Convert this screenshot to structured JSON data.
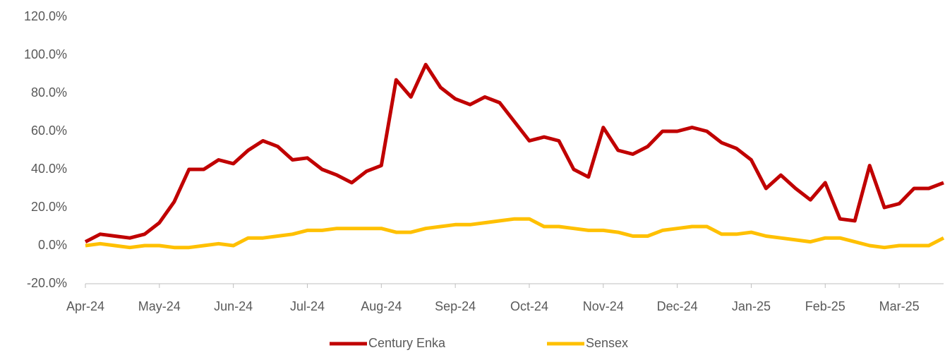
{
  "chart_data": {
    "type": "line",
    "categories": [
      "Apr-24",
      null,
      null,
      null,
      null,
      "May-24",
      null,
      null,
      null,
      null,
      "Jun-24",
      null,
      null,
      null,
      null,
      "Jul-24",
      null,
      null,
      null,
      null,
      "Aug-24",
      null,
      null,
      null,
      null,
      "Sep-24",
      null,
      null,
      null,
      null,
      "Oct-24",
      null,
      null,
      null,
      null,
      "Nov-24",
      null,
      null,
      null,
      null,
      "Dec-24",
      null,
      null,
      null,
      null,
      "Jan-25",
      null,
      null,
      null,
      null,
      "Feb-25",
      null,
      null,
      null,
      null,
      "Mar-25",
      null,
      null,
      null
    ],
    "series": [
      {
        "name": "Century Enka",
        "color": "#c00000",
        "values": [
          2,
          6,
          5,
          4,
          6,
          12,
          23,
          40,
          40,
          45,
          43,
          50,
          55,
          52,
          45,
          46,
          40,
          37,
          33,
          39,
          42,
          87,
          78,
          95,
          83,
          77,
          74,
          78,
          75,
          65,
          55,
          57,
          55,
          40,
          36,
          62,
          50,
          48,
          52,
          60,
          60,
          62,
          60,
          54,
          51,
          45,
          30,
          37,
          30,
          24,
          33,
          14,
          13,
          42,
          20,
          22,
          30,
          30,
          33
        ]
      },
      {
        "name": "Sensex",
        "color": "#ffc000",
        "values": [
          0,
          1,
          0,
          -1,
          0,
          0,
          -1,
          -1,
          0,
          1,
          0,
          4,
          4,
          5,
          6,
          8,
          8,
          9,
          9,
          9,
          9,
          7,
          7,
          9,
          10,
          11,
          11,
          12,
          13,
          14,
          14,
          10,
          10,
          9,
          8,
          8,
          7,
          5,
          5,
          8,
          9,
          10,
          10,
          6,
          6,
          7,
          5,
          4,
          3,
          2,
          4,
          4,
          2,
          0,
          -1,
          0,
          0,
          0,
          4
        ]
      }
    ],
    "ylim": [
      -20,
      120
    ],
    "yticks": [
      {
        "value": -20,
        "label": "-20.0%"
      },
      {
        "value": 0,
        "label": "0.0%"
      },
      {
        "value": 20,
        "label": "20.0%"
      },
      {
        "value": 40,
        "label": "40.0%"
      },
      {
        "value": 60,
        "label": "60.0%"
      },
      {
        "value": 80,
        "label": "80.0%"
      },
      {
        "value": 100,
        "label": "100.0%"
      },
      {
        "value": 120,
        "label": "120.0%"
      }
    ],
    "grid": false,
    "legend": "bottom"
  }
}
